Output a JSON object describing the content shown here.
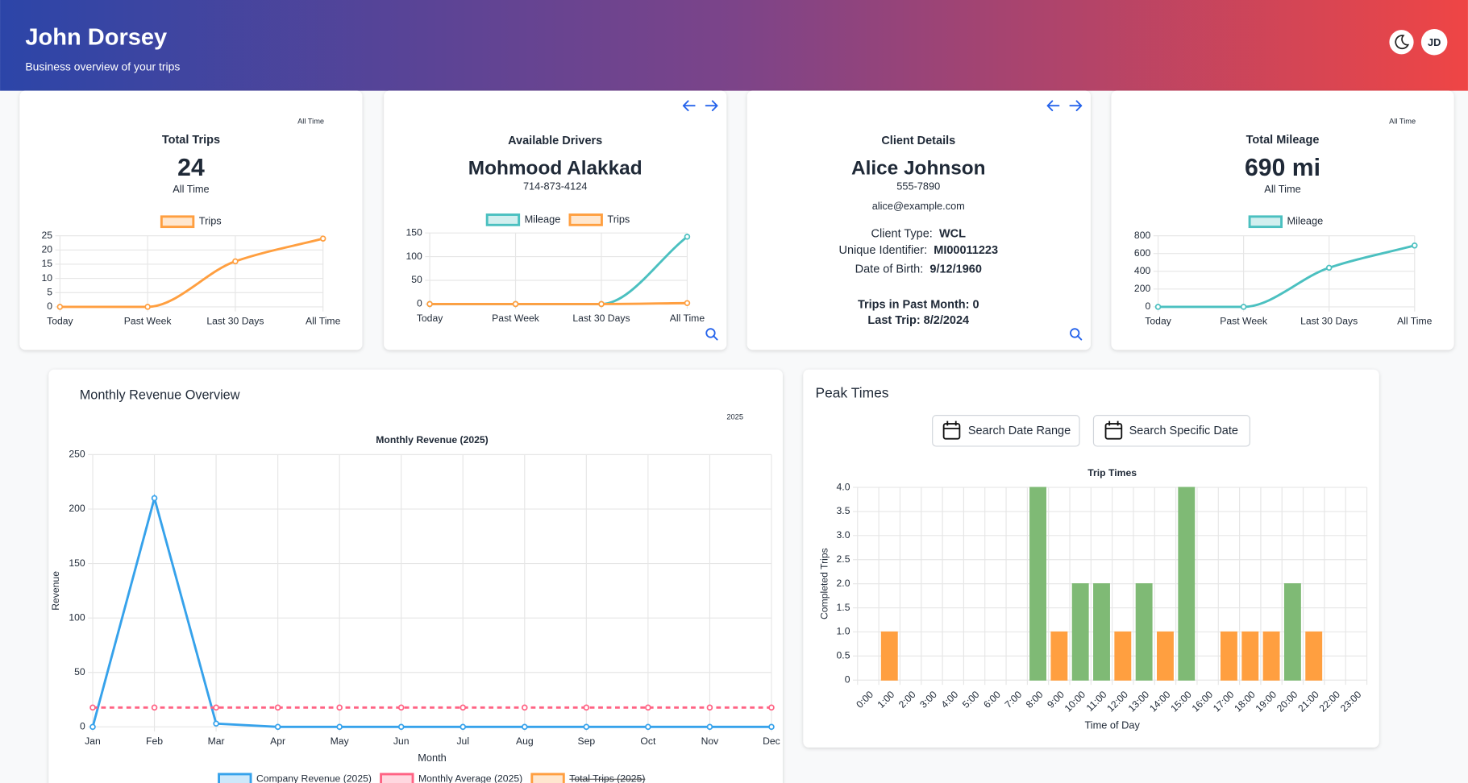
{
  "header": {
    "title": "John Dorsey",
    "subtitle": "Business overview of your trips",
    "avatar": "JD"
  },
  "total_trips": {
    "range": "All Time",
    "title": "Total Trips",
    "value": 24,
    "caption": "All Time",
    "chart": {
      "type": "line",
      "smooth": true,
      "categories": [
        "Today",
        "Past Week",
        "Last 30 Days",
        "All Time"
      ],
      "series": [
        {
          "name": "Trips",
          "color": "#ff9f40",
          "values": [
            0,
            0,
            16,
            24
          ]
        }
      ],
      "ylim": [
        0,
        25
      ],
      "yticks": [
        0,
        5,
        10,
        15,
        20,
        25
      ],
      "grid": true
    }
  },
  "drivers": {
    "title": "Available Drivers",
    "name": "Mohmood Alakkad",
    "phone": "714-873-4124",
    "chart": {
      "type": "line",
      "smooth": true,
      "categories": [
        "Today",
        "Past Week",
        "Last 30 Days",
        "All Time"
      ],
      "series": [
        {
          "name": "Mileage",
          "color": "#4bc0c0",
          "values": [
            0,
            0,
            0,
            142
          ]
        },
        {
          "name": "Trips",
          "color": "#ff9f40",
          "values": [
            0,
            0,
            0,
            2
          ]
        }
      ],
      "ylim": [
        0,
        150
      ],
      "yticks": [
        0,
        50,
        100,
        150
      ],
      "grid": true
    }
  },
  "client": {
    "title": "Client Details",
    "name": "Alice Johnson",
    "phone": "555-7890",
    "email": "alice@example.com",
    "fields": [
      {
        "label": "Client Type:",
        "value": "WCL"
      },
      {
        "label": "Unique Identifier:",
        "value": "MI00011223"
      },
      {
        "label": "Date of Birth:",
        "value": "9/12/1960"
      }
    ],
    "summary": [
      "Trips in Past Month: 0",
      "Last Trip: 8/2/2024"
    ]
  },
  "total_mileage": {
    "range": "All Time",
    "title": "Total Mileage",
    "value": "690 mi",
    "caption": "All Time",
    "chart": {
      "type": "line",
      "smooth": true,
      "categories": [
        "Today",
        "Past Week",
        "Last 30 Days",
        "All Time"
      ],
      "series": [
        {
          "name": "Mileage",
          "color": "#4bc0c0",
          "values": [
            0,
            0,
            440,
            690
          ]
        }
      ],
      "ylim": [
        0,
        800
      ],
      "yticks": [
        0,
        200,
        400,
        600,
        800
      ],
      "grid": true
    }
  },
  "revenue": {
    "title": "Monthly Revenue Overview",
    "year": "2025",
    "chart": {
      "type": "line",
      "title": "Monthly Revenue (2025)",
      "xlabel": "Month",
      "ylabel": "Revenue",
      "categories": [
        "Jan",
        "Feb",
        "Mar",
        "Apr",
        "May",
        "Jun",
        "Jul",
        "Aug",
        "Sep",
        "Oct",
        "Nov",
        "Dec"
      ],
      "series": [
        {
          "name": "Company Revenue (2025)",
          "color": "#36a2eb",
          "values": [
            0,
            210,
            3,
            0,
            0,
            0,
            0,
            0,
            0,
            0,
            0,
            0
          ]
        },
        {
          "name": "Monthly Average (2025)",
          "color": "#ff6384",
          "dashed": true,
          "values": [
            17.75,
            17.75,
            17.75,
            17.75,
            17.75,
            17.75,
            17.75,
            17.75,
            17.75,
            17.75,
            17.75,
            17.75
          ]
        },
        {
          "name": "Total Trips (2025)",
          "color": "#ff9f40",
          "hidden": true
        }
      ],
      "ylim": [
        0,
        250
      ],
      "yticks": [
        0,
        50,
        100,
        150,
        200,
        250
      ],
      "grid": true
    }
  },
  "peak_times": {
    "title": "Peak Times",
    "buttons": [
      "Search Date Range",
      "Search Specific Date"
    ],
    "chart": {
      "type": "bar",
      "title": "Trip Times",
      "xlabel": "Time of Day",
      "ylabel": "Completed Trips",
      "categories": [
        "0:00",
        "1:00",
        "2:00",
        "3:00",
        "4:00",
        "5:00",
        "6:00",
        "7:00",
        "8:00",
        "9:00",
        "10:00",
        "11:00",
        "12:00",
        "13:00",
        "14:00",
        "15:00",
        "16:00",
        "17:00",
        "18:00",
        "19:00",
        "20:00",
        "21:00",
        "22:00",
        "23:00"
      ],
      "values": [
        0,
        1,
        0,
        0,
        0,
        0,
        0,
        0,
        4,
        1,
        2,
        2,
        1,
        2,
        1,
        4,
        0,
        1,
        1,
        1,
        2,
        1,
        0,
        0
      ],
      "colors": [
        "#ff9f40",
        "#ff9f40",
        "#ff9f40",
        "#ff9f40",
        "#ff9f40",
        "#ff9f40",
        "#ff9f40",
        "#ff9f40",
        "#7fba75",
        "#ff9f40",
        "#7fba75",
        "#7fba75",
        "#ff9f40",
        "#7fba75",
        "#ff9f40",
        "#7fba75",
        "#ff9f40",
        "#ff9f40",
        "#ff9f40",
        "#ff9f40",
        "#7fba75",
        "#ff9f40",
        "#ff9f40",
        "#ff9f40"
      ],
      "ylim": [
        0,
        4
      ],
      "yticks": [
        0,
        0.5,
        {
          "value": 1,
          "label": "1.0"
        },
        1.5,
        {
          "value": 2,
          "label": "2.0"
        },
        2.5,
        {
          "value": 3,
          "label": "3.0"
        },
        3.5,
        {
          "value": 4,
          "label": "4.0"
        }
      ],
      "grid": true
    }
  }
}
